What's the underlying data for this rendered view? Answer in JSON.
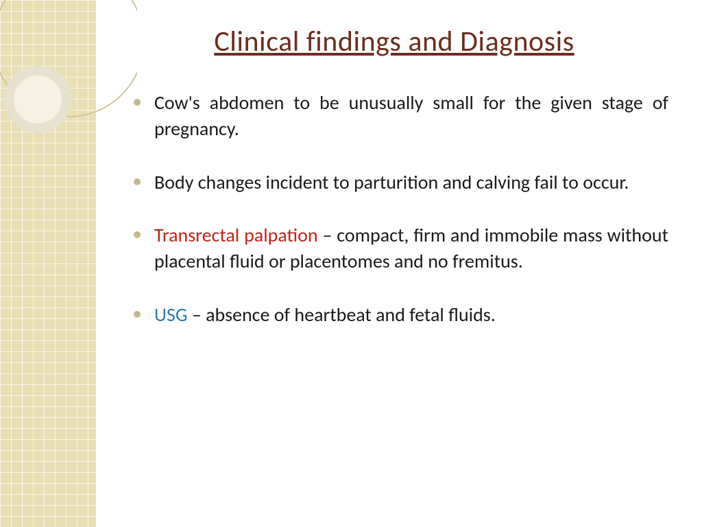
{
  "slide": {
    "title": "Clinical findings and Diagnosis",
    "title_color": "#6b2e1f",
    "bullet_marker_color": "#c5b98a",
    "body_text_color": "#1a1a1a",
    "background_color": "#ffffff",
    "sidebar_color": "#e8dfb5",
    "items": [
      {
        "segments": [
          {
            "text": "Cow's abdomen to be unusually small for the given stage of pregnancy.",
            "color": "#1a1a1a"
          }
        ]
      },
      {
        "segments": [
          {
            "text": "Body changes incident to parturition and calving fail to occur.",
            "color": "#1a1a1a"
          }
        ]
      },
      {
        "segments": [
          {
            "text": "Transrectal palpation",
            "color": "#c02418"
          },
          {
            "text": " – compact, firm and immobile mass without placental fluid or placentomes and no fremitus.",
            "color": "#1a1a1a"
          }
        ]
      },
      {
        "segments": [
          {
            "text": "USG",
            "color": "#2a7ab0"
          },
          {
            "text": " – absence of heartbeat and fetal fluids.",
            "color": "#1a1a1a"
          }
        ]
      }
    ],
    "decor": {
      "outer_ring_stroke": "#cfc79a",
      "inner_ring_stroke": "#e6e2cf",
      "inner_ring_fill": "#f5f2e4"
    }
  }
}
